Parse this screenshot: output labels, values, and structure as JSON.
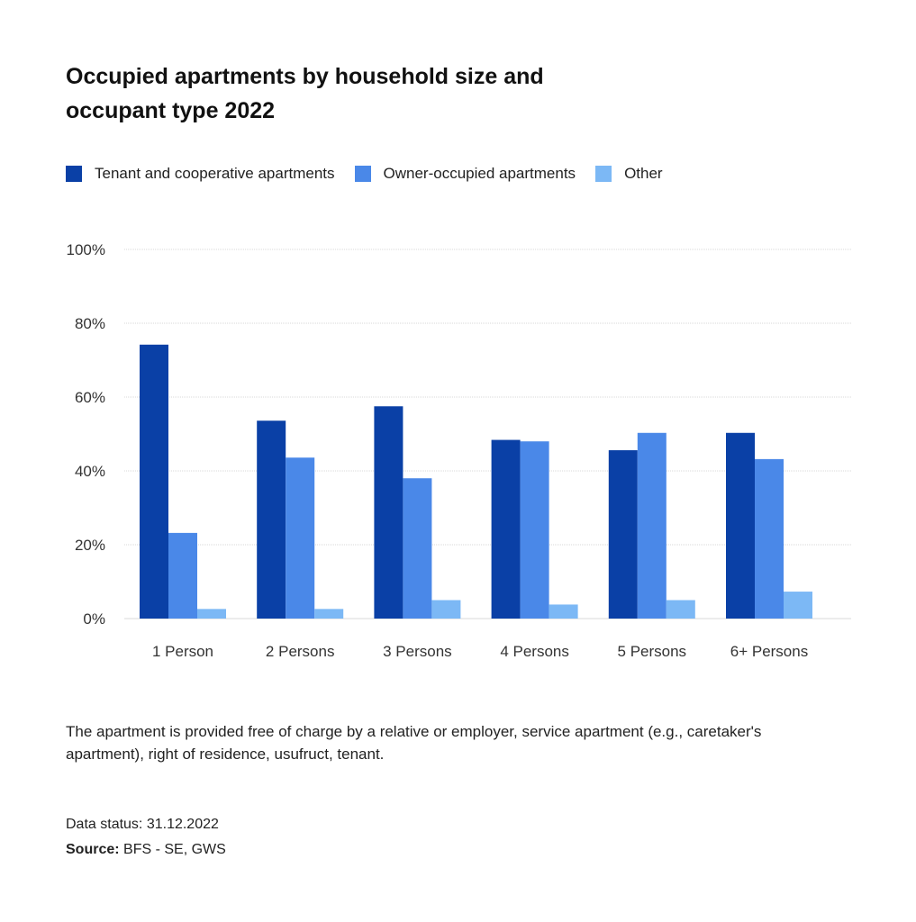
{
  "title": "Occupied apartments by household size and occupant type 2022",
  "legend": [
    {
      "label": "Tenant and cooperative apartments",
      "color": "#0a40a6"
    },
    {
      "label": "Owner-occupied apartments",
      "color": "#4a88e8"
    },
    {
      "label": "Other",
      "color": "#7cb8f5"
    }
  ],
  "chart_data": {
    "type": "bar",
    "categories": [
      "1 Person",
      "2 Persons",
      "3 Persons",
      "4 Persons",
      "5 Persons",
      "6+ Persons"
    ],
    "series": [
      {
        "name": "Tenant and cooperative apartments",
        "color": "#0a40a6",
        "values": [
          74.2,
          53.6,
          57.5,
          48.4,
          45.6,
          50.3
        ]
      },
      {
        "name": "Owner-occupied apartments",
        "color": "#4a88e8",
        "values": [
          23.2,
          43.6,
          38.0,
          48.0,
          50.3,
          43.2
        ]
      },
      {
        "name": "Other",
        "color": "#7cb8f5",
        "values": [
          2.6,
          2.6,
          5.0,
          3.8,
          5.0,
          7.3
        ]
      }
    ],
    "y_ticks": [
      "0%",
      "20%",
      "40%",
      "60%",
      "80%",
      "100%"
    ],
    "ylim": [
      0,
      100
    ],
    "grid": true,
    "legend_position": "top-left"
  },
  "note": "The apartment is provided free of charge by a relative or employer, service apartment (e.g., caretaker's apartment), right of residence, usufruct, tenant.",
  "data_status": "Data status: 31.12.2022",
  "source": {
    "label": "Source:",
    "text": " BFS - SE, GWS"
  }
}
